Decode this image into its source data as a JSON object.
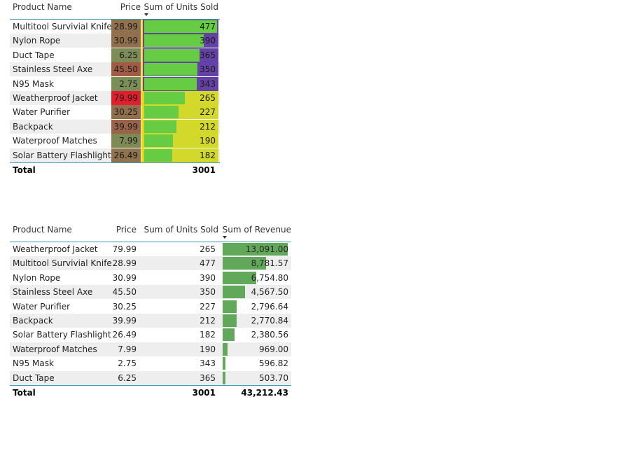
{
  "colors": {
    "units_high": "#6441a5",
    "units_low": "#d3d92a",
    "units_bar": "#66cc44",
    "rev_bar": "#62a85b",
    "price_scale": {
      "low": "#7a8f58",
      "mid": "#9a6248",
      "high": "#e01e2e"
    }
  },
  "table1": {
    "headers": {
      "product": "Product Name",
      "price": "Price",
      "units": "Sum of Units Sold"
    },
    "sorted_column": "units",
    "rows": [
      {
        "product": "Multitool Survivial Knife",
        "price": "28.99",
        "price_value": 28.99,
        "units": "477",
        "units_value": 477
      },
      {
        "product": "Nylon Rope",
        "price": "30.99",
        "price_value": 30.99,
        "units": "390",
        "units_value": 390
      },
      {
        "product": "Duct Tape",
        "price": "6.25",
        "price_value": 6.25,
        "units": "365",
        "units_value": 365
      },
      {
        "product": "Stainless Steel Axe",
        "price": "45.50",
        "price_value": 45.5,
        "units": "350",
        "units_value": 350
      },
      {
        "product": "N95 Mask",
        "price": "2.75",
        "price_value": 2.75,
        "units": "343",
        "units_value": 343
      },
      {
        "product": "Weatherproof Jacket",
        "price": "79.99",
        "price_value": 79.99,
        "units": "265",
        "units_value": 265
      },
      {
        "product": "Water Purifier",
        "price": "30.25",
        "price_value": 30.25,
        "units": "227",
        "units_value": 227
      },
      {
        "product": "Backpack",
        "price": "39.99",
        "price_value": 39.99,
        "units": "212",
        "units_value": 212
      },
      {
        "product": "Waterproof Matches",
        "price": "7.99",
        "price_value": 7.99,
        "units": "190",
        "units_value": 190
      },
      {
        "product": "Solar Battery Flashlight",
        "price": "26.49",
        "price_value": 26.49,
        "units": "182",
        "units_value": 182
      }
    ],
    "total": {
      "label": "Total",
      "units": "3001"
    }
  },
  "table2": {
    "headers": {
      "product": "Product Name",
      "price": "Price",
      "units": "Sum of Units Sold",
      "revenue": "Sum of Revenue"
    },
    "sorted_column": "revenue",
    "rows": [
      {
        "product": "Weatherproof Jacket",
        "price": "79.99",
        "units": "265",
        "revenue": "13,091.00",
        "revenue_value": 13091.0
      },
      {
        "product": "Multitool Survivial Knife",
        "price": "28.99",
        "units": "477",
        "revenue": "8,781.57",
        "revenue_value": 8781.57
      },
      {
        "product": "Nylon Rope",
        "price": "30.99",
        "units": "390",
        "revenue": "6,754.80",
        "revenue_value": 6754.8
      },
      {
        "product": "Stainless Steel Axe",
        "price": "45.50",
        "units": "350",
        "revenue": "4,567.50",
        "revenue_value": 4567.5
      },
      {
        "product": "Water Purifier",
        "price": "30.25",
        "units": "227",
        "revenue": "2,796.64",
        "revenue_value": 2796.64
      },
      {
        "product": "Backpack",
        "price": "39.99",
        "units": "212",
        "revenue": "2,770.84",
        "revenue_value": 2770.84
      },
      {
        "product": "Solar Battery Flashlight",
        "price": "26.49",
        "units": "182",
        "revenue": "2,380.56",
        "revenue_value": 2380.56
      },
      {
        "product": "Waterproof Matches",
        "price": "7.99",
        "units": "190",
        "revenue": "969.00",
        "revenue_value": 969.0
      },
      {
        "product": "N95 Mask",
        "price": "2.75",
        "units": "343",
        "revenue": "596.82",
        "revenue_value": 596.82
      },
      {
        "product": "Duct Tape",
        "price": "6.25",
        "units": "365",
        "revenue": "503.70",
        "revenue_value": 503.7
      }
    ],
    "total": {
      "label": "Total",
      "units": "3001",
      "revenue": "43,212.43"
    }
  }
}
